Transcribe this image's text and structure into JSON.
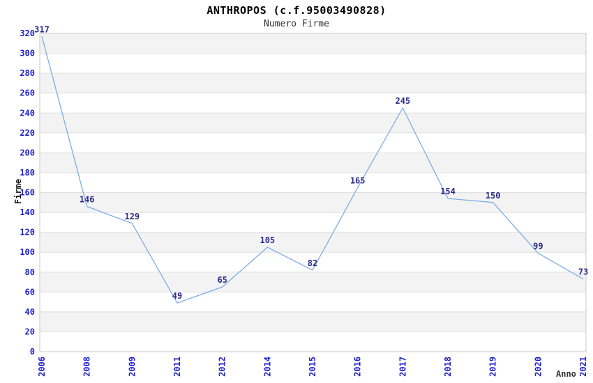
{
  "chart_data": {
    "type": "line",
    "title": "ANTHROPOS (c.f.95003490828)",
    "subtitle": "Numero Firme",
    "xlabel": "Anno",
    "ylabel": "Firme",
    "x": [
      "2006",
      "2008",
      "2009",
      "2011",
      "2012",
      "2014",
      "2015",
      "2016",
      "2017",
      "2018",
      "2019",
      "2020",
      "2021"
    ],
    "values": [
      317,
      146,
      129,
      49,
      65,
      105,
      82,
      165,
      245,
      154,
      150,
      99,
      73
    ],
    "ylim": [
      0,
      320
    ],
    "ytick_step": 20,
    "grid": true,
    "banded_background": true,
    "legend": "none",
    "colors": {
      "line": "#7EADE6",
      "tick_label": "#2121CE",
      "data_label": "#2B2B8C",
      "band": "#F3F3F3",
      "gridline": "#E0E0E0",
      "spine": "#C9C9C9",
      "title": "#000000",
      "subtitle": "#333333",
      "axis_title": "#222222"
    }
  }
}
